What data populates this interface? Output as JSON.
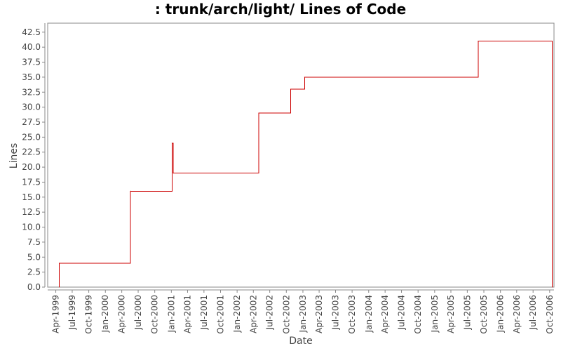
{
  "chart_data": {
    "type": "line",
    "title": ": trunk/arch/light/ Lines of Code",
    "xlabel": "Date",
    "ylabel": "Lines",
    "ylim": [
      0,
      44
    ],
    "xlim": [
      "1999-02-15",
      "2006-10-25"
    ],
    "yticks": [
      "0.0",
      "2.5",
      "5.0",
      "7.5",
      "10.0",
      "12.5",
      "15.0",
      "17.5",
      "20.0",
      "22.5",
      "25.0",
      "27.5",
      "30.0",
      "32.5",
      "35.0",
      "37.5",
      "40.0",
      "42.5"
    ],
    "xticks": [
      {
        "label": "Apr-1999",
        "date": "1999-04-01"
      },
      {
        "label": "Jul-1999",
        "date": "1999-07-01"
      },
      {
        "label": "Oct-1999",
        "date": "1999-10-01"
      },
      {
        "label": "Jan-2000",
        "date": "2000-01-01"
      },
      {
        "label": "Apr-2000",
        "date": "2000-04-01"
      },
      {
        "label": "Jul-2000",
        "date": "2000-07-01"
      },
      {
        "label": "Oct-2000",
        "date": "2000-10-01"
      },
      {
        "label": "Jan-2001",
        "date": "2001-01-01"
      },
      {
        "label": "Apr-2001",
        "date": "2001-04-01"
      },
      {
        "label": "Jul-2001",
        "date": "2001-07-01"
      },
      {
        "label": "Oct-2001",
        "date": "2001-10-01"
      },
      {
        "label": "Jan-2002",
        "date": "2002-01-01"
      },
      {
        "label": "Apr-2002",
        "date": "2002-04-01"
      },
      {
        "label": "Jul-2002",
        "date": "2002-07-01"
      },
      {
        "label": "Oct-2002",
        "date": "2002-10-01"
      },
      {
        "label": "Jan-2003",
        "date": "2003-01-01"
      },
      {
        "label": "Apr-2003",
        "date": "2003-04-01"
      },
      {
        "label": "Jul-2003",
        "date": "2003-07-01"
      },
      {
        "label": "Oct-2003",
        "date": "2003-10-01"
      },
      {
        "label": "Jan-2004",
        "date": "2004-01-01"
      },
      {
        "label": "Apr-2004",
        "date": "2004-04-01"
      },
      {
        "label": "Jul-2004",
        "date": "2004-07-01"
      },
      {
        "label": "Oct-2004",
        "date": "2004-10-01"
      },
      {
        "label": "Jan-2005",
        "date": "2005-01-01"
      },
      {
        "label": "Apr-2005",
        "date": "2005-04-01"
      },
      {
        "label": "Jul-2005",
        "date": "2005-07-01"
      },
      {
        "label": "Oct-2005",
        "date": "2005-10-01"
      },
      {
        "label": "Jan-2006",
        "date": "2006-01-01"
      },
      {
        "label": "Apr-2006",
        "date": "2006-04-01"
      },
      {
        "label": "Jul-2006",
        "date": "2006-07-01"
      },
      {
        "label": "Oct-2006",
        "date": "2006-10-01"
      }
    ],
    "grid": false,
    "legend": "none",
    "series": [
      {
        "step": true,
        "color": "#cc0000",
        "points": [
          {
            "x": "1999-04-20",
            "y": 0
          },
          {
            "x": "1999-04-20",
            "y": 4
          },
          {
            "x": "2000-05-20",
            "y": 16
          },
          {
            "x": "2001-01-05",
            "y": 24
          },
          {
            "x": "2001-01-12",
            "y": 19
          },
          {
            "x": "2002-05-01",
            "y": 29
          },
          {
            "x": "2002-10-25",
            "y": 33
          },
          {
            "x": "2003-01-10",
            "y": 35
          },
          {
            "x": "2005-08-30",
            "y": 41
          },
          {
            "x": "2006-10-15",
            "y": 0
          }
        ]
      }
    ]
  }
}
